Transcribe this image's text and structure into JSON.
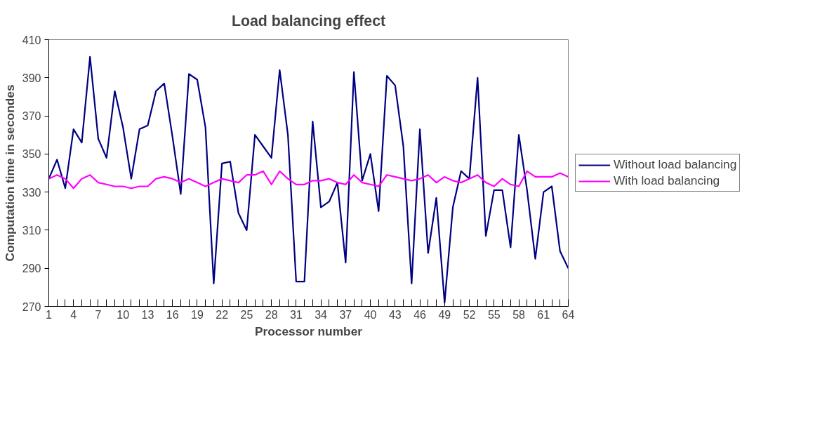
{
  "chart_data": {
    "type": "line",
    "title": "Load balancing effect",
    "xlabel": "Processor number",
    "ylabel": "Computation time in secondes",
    "x": [
      1,
      2,
      3,
      4,
      5,
      6,
      7,
      8,
      9,
      10,
      11,
      12,
      13,
      14,
      15,
      16,
      17,
      18,
      19,
      20,
      21,
      22,
      23,
      24,
      25,
      26,
      27,
      28,
      29,
      30,
      31,
      32,
      33,
      34,
      35,
      36,
      37,
      38,
      39,
      40,
      41,
      42,
      43,
      44,
      45,
      46,
      47,
      48,
      49,
      50,
      51,
      52,
      53,
      54,
      55,
      56,
      57,
      58,
      59,
      60,
      61,
      62,
      63,
      64
    ],
    "series": [
      {
        "name": "Without load balancing",
        "color": "#000080",
        "values": [
          337,
          347,
          332,
          363,
          356,
          401,
          358,
          348,
          383,
          364,
          337,
          363,
          365,
          383,
          387,
          359,
          329,
          392,
          389,
          364,
          282,
          345,
          346,
          319,
          310,
          360,
          354,
          348,
          394,
          360,
          283,
          283,
          367,
          322,
          325,
          335,
          293,
          393,
          336,
          350,
          320,
          391,
          386,
          354,
          282,
          363,
          298,
          327,
          272,
          322,
          341,
          337,
          390,
          307,
          331,
          331,
          301,
          360,
          331,
          295,
          330,
          333,
          299,
          290
        ]
      },
      {
        "name": "With load balancing",
        "color": "#ff00ff",
        "values": [
          337,
          339,
          337,
          332,
          337,
          339,
          335,
          334,
          333,
          333,
          332,
          333,
          333,
          337,
          338,
          337,
          335,
          337,
          335,
          333,
          335,
          337,
          336,
          335,
          339,
          339,
          341,
          334,
          341,
          337,
          334,
          334,
          336,
          336,
          337,
          335,
          334,
          339,
          335,
          334,
          333,
          339,
          338,
          337,
          336,
          337,
          339,
          335,
          338,
          336,
          335,
          337,
          339,
          335,
          333,
          337,
          334,
          333,
          341,
          338,
          338,
          338,
          340,
          338
        ]
      }
    ],
    "xlim": [
      1,
      64
    ],
    "xticks": [
      1,
      {
        "value": 2,
        "label": null
      },
      {
        "value": 3,
        "label": null
      },
      4,
      {
        "value": 5,
        "label": null
      },
      {
        "value": 6,
        "label": null
      },
      7,
      {
        "value": 8,
        "label": null
      },
      {
        "value": 9,
        "label": null
      },
      10,
      {
        "value": 11,
        "label": null
      },
      {
        "value": 12,
        "label": null
      },
      13,
      {
        "value": 14,
        "label": null
      },
      {
        "value": 15,
        "label": null
      },
      16,
      {
        "value": 17,
        "label": null
      },
      {
        "value": 18,
        "label": null
      },
      19,
      {
        "value": 20,
        "label": null
      },
      {
        "value": 21,
        "label": null
      },
      22,
      {
        "value": 23,
        "label": null
      },
      {
        "value": 24,
        "label": null
      },
      25,
      {
        "value": 26,
        "label": null
      },
      {
        "value": 27,
        "label": null
      },
      28,
      {
        "value": 29,
        "label": null
      },
      {
        "value": 30,
        "label": null
      },
      31,
      {
        "value": 32,
        "label": null
      },
      {
        "value": 33,
        "label": null
      },
      34,
      {
        "value": 35,
        "label": null
      },
      {
        "value": 36,
        "label": null
      },
      37,
      {
        "value": 38,
        "label": null
      },
      {
        "value": 39,
        "label": null
      },
      40,
      {
        "value": 41,
        "label": null
      },
      {
        "value": 42,
        "label": null
      },
      43,
      {
        "value": 44,
        "label": null
      },
      {
        "value": 45,
        "label": null
      },
      46,
      {
        "value": 47,
        "label": null
      },
      {
        "value": 48,
        "label": null
      },
      49,
      {
        "value": 50,
        "label": null
      },
      {
        "value": 51,
        "label": null
      },
      52,
      {
        "value": 53,
        "label": null
      },
      {
        "value": 54,
        "label": null
      },
      55,
      {
        "value": 56,
        "label": null
      },
      {
        "value": 57,
        "label": null
      },
      58,
      {
        "value": 59,
        "label": null
      },
      {
        "value": 60,
        "label": null
      },
      61,
      {
        "value": 62,
        "label": null
      },
      {
        "value": 63,
        "label": null
      },
      64
    ],
    "ylim": [
      270,
      410
    ],
    "yticks": [
      270,
      290,
      310,
      330,
      350,
      370,
      390,
      410
    ],
    "grid": false,
    "legend": "right",
    "marker": "none",
    "line_style": "solid"
  }
}
